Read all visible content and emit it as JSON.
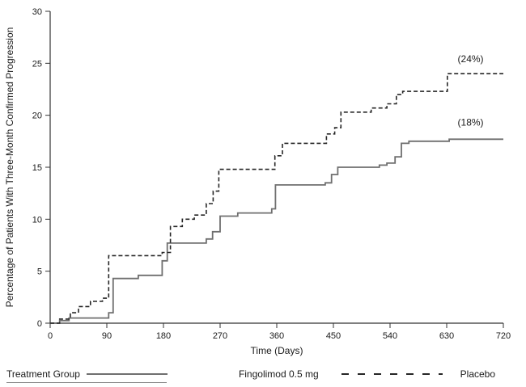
{
  "chart_data": {
    "type": "line",
    "subtype": "kaplan-meier-step",
    "title": "",
    "xlabel": "Time (Days)",
    "ylabel": "Percentage of Patients With Three-Month Confirmed Progression",
    "xlim": [
      0,
      720
    ],
    "ylim": [
      0,
      30
    ],
    "xticks": [
      0,
      90,
      180,
      270,
      360,
      450,
      540,
      630,
      720
    ],
    "yticks": [
      0,
      5,
      10,
      15,
      20,
      25,
      30
    ],
    "grid": false,
    "axis_color": "#333333",
    "series": [
      {
        "name": "Fingolimod 0.5 mg",
        "style": "solid",
        "color": "#6f6f6f",
        "final_label": "(18%)",
        "points": [
          [
            0,
            0
          ],
          [
            15,
            0.25
          ],
          [
            30,
            0.5
          ],
          [
            93,
            1.0
          ],
          [
            100,
            4.3
          ],
          [
            140,
            4.6
          ],
          [
            178,
            6.0
          ],
          [
            186,
            7.7
          ],
          [
            248,
            8.1
          ],
          [
            258,
            8.8
          ],
          [
            270,
            10.3
          ],
          [
            298,
            10.6
          ],
          [
            352,
            11.0
          ],
          [
            358,
            13.3
          ],
          [
            437,
            13.5
          ],
          [
            447,
            14.3
          ],
          [
            457,
            15.0
          ],
          [
            523,
            15.2
          ],
          [
            535,
            15.4
          ],
          [
            548,
            16.0
          ],
          [
            558,
            17.3
          ],
          [
            570,
            17.5
          ],
          [
            634,
            17.7
          ],
          [
            720,
            17.7
          ]
        ]
      },
      {
        "name": "Placebo",
        "style": "dashed",
        "color": "#262626",
        "final_label": "(24%)",
        "points": [
          [
            0,
            0
          ],
          [
            15,
            0.4
          ],
          [
            32,
            1.0
          ],
          [
            45,
            1.6
          ],
          [
            64,
            2.1
          ],
          [
            83,
            2.4
          ],
          [
            93,
            6.5
          ],
          [
            178,
            6.8
          ],
          [
            191,
            9.3
          ],
          [
            210,
            10.0
          ],
          [
            229,
            10.4
          ],
          [
            248,
            11.5
          ],
          [
            259,
            12.7
          ],
          [
            268,
            14.8
          ],
          [
            357,
            16.1
          ],
          [
            369,
            17.3
          ],
          [
            439,
            18.2
          ],
          [
            452,
            18.8
          ],
          [
            462,
            20.3
          ],
          [
            510,
            20.7
          ],
          [
            535,
            21.1
          ],
          [
            550,
            22.0
          ],
          [
            560,
            22.3
          ],
          [
            631,
            24.0
          ],
          [
            720,
            24.0
          ]
        ]
      }
    ],
    "annotations": [
      {
        "text": "(24%)",
        "x": 668,
        "y": 25.1
      },
      {
        "text": "(18%)",
        "x": 668,
        "y": 19.0
      }
    ],
    "legend_position": "bottom"
  },
  "legend": {
    "title": "Treatment Group",
    "items": [
      {
        "label": "Fingolimod 0.5 mg",
        "style": "solid"
      },
      {
        "label": "Placebo",
        "style": "dashed"
      }
    ]
  }
}
